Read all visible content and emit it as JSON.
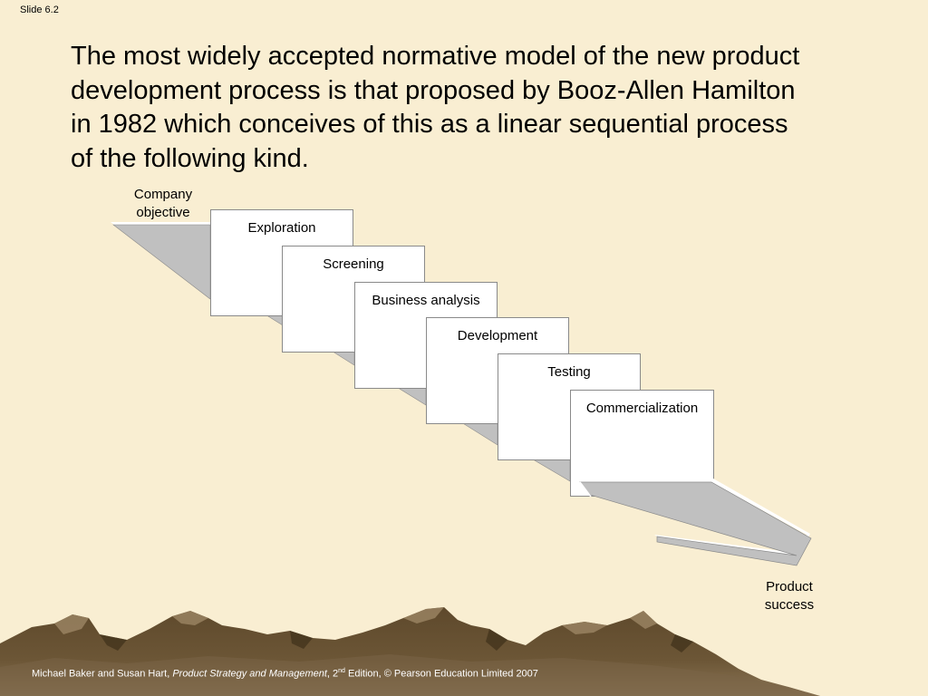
{
  "slide": {
    "number": "Slide 6.2"
  },
  "headline": {
    "lines": [
      "The most widely accepted normative model of the new product",
      "development process is that proposed by Booz-Allen Hamilton",
      "in 1982 which conceives of this as a linear sequential process",
      "of the following kind."
    ]
  },
  "diagram": {
    "start_label": [
      "Company",
      "objective"
    ],
    "end_label": [
      "Product",
      "success"
    ],
    "stages": [
      "Exploration",
      "Screening",
      "Business analysis",
      "Development",
      "Testing",
      "Commercialization"
    ]
  },
  "footer": {
    "authors": "Michael Baker and Susan Hart, ",
    "book_title": "Product Strategy and Management",
    "edition_prefix": ", 2",
    "edition_suffix": "nd",
    "rest": " Edition, © Pearson Education Limited 2007"
  },
  "colors": {
    "background": "#f9eed2",
    "arrow_fill": "#c0c0c0",
    "arrow_edge": "#ffffff",
    "box_fill": "#ffffff",
    "mountain_dark": "#5a4529",
    "mountain_light": "#8f7a5c"
  }
}
